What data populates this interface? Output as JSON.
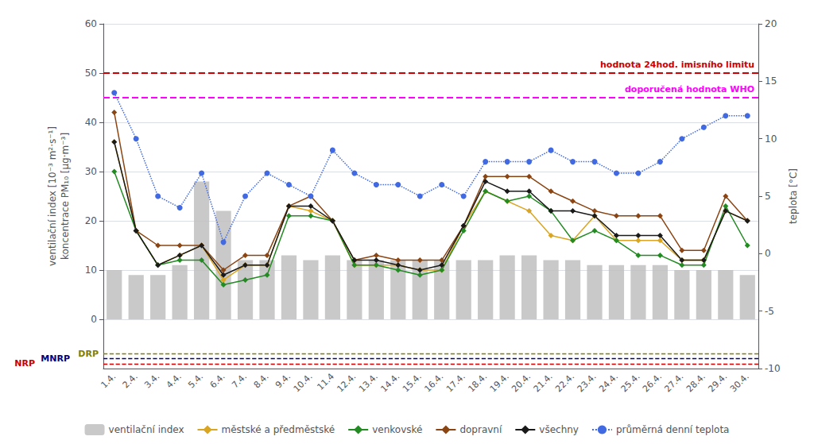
{
  "chart_data": {
    "type": "bar",
    "categories": [
      "1.4.",
      "2.4.",
      "3.4.",
      "4.4.",
      "5.4.",
      "6.4.",
      "7.4.",
      "8.4.",
      "9.4.",
      "10.4.",
      "11.4",
      "12.4.",
      "13.4.",
      "14.4.",
      "15.4.",
      "16.4.",
      "17.4.",
      "18.4.",
      "19.4.",
      "20.4.",
      "21.4.",
      "22.4.",
      "23.4.",
      "24.4.",
      "25.4.",
      "26.4.",
      "27.4.",
      "28.4.",
      "29.4.",
      "30.4."
    ],
    "series": [
      {
        "name": "ventilační index",
        "type": "bar",
        "color": "#C0C0C0",
        "values": [
          10,
          9,
          9,
          11,
          28,
          22,
          12,
          12,
          13,
          12,
          13,
          12,
          12,
          12,
          12,
          12,
          12,
          12,
          13,
          13,
          12,
          12,
          11,
          11,
          11,
          11,
          10,
          10,
          10,
          9
        ]
      },
      {
        "name": "městské a předměstské",
        "type": "line",
        "color": "#DAA520",
        "marker": "diamond",
        "line_style": "solid",
        "values": [
          36,
          18,
          11,
          13,
          15,
          8,
          11,
          11,
          23,
          22,
          20,
          11,
          11,
          11,
          10,
          10,
          19,
          26,
          24,
          22,
          17,
          16,
          21,
          16,
          16,
          16,
          12,
          12,
          22,
          20
        ]
      },
      {
        "name": "venkovské",
        "type": "line",
        "color": "#228B22",
        "marker": "diamond",
        "line_style": "solid",
        "values": [
          30,
          18,
          11,
          12,
          12,
          7,
          8,
          9,
          21,
          21,
          20,
          11,
          11,
          10,
          9,
          10,
          18,
          26,
          24,
          25,
          22,
          16,
          18,
          16,
          13,
          13,
          11,
          11,
          23,
          15
        ]
      },
      {
        "name": "dopravní",
        "type": "line",
        "color": "#8B4513",
        "marker": "diamond",
        "line_style": "solid",
        "values": [
          42,
          18,
          15,
          15,
          15,
          10,
          13,
          13,
          23,
          25,
          20,
          12,
          13,
          12,
          12,
          12,
          19,
          29,
          29,
          29,
          26,
          24,
          22,
          21,
          21,
          21,
          14,
          14,
          25,
          20
        ]
      },
      {
        "name": "všechny",
        "type": "line",
        "color": "#1a1a1a",
        "marker": "diamond",
        "line_style": "solid",
        "values": [
          36,
          18,
          11,
          13,
          15,
          9,
          11,
          11,
          23,
          23,
          20,
          12,
          12,
          11,
          10,
          11,
          19,
          28,
          26,
          26,
          22,
          22,
          21,
          17,
          17,
          17,
          12,
          12,
          22,
          20
        ]
      },
      {
        "name": "průměrná denní teplota",
        "type": "line",
        "color": "#4169E1",
        "marker": "circle",
        "line_style": "dotted",
        "axis": "y2",
        "values": [
          14,
          10,
          5,
          4,
          7,
          1,
          5,
          7,
          6,
          5,
          9,
          7,
          6,
          6,
          5,
          6,
          5,
          8,
          8,
          8,
          9,
          8,
          8,
          7,
          7,
          8,
          10,
          11,
          12,
          12
        ]
      }
    ],
    "ylabel": "ventilační index [10⁻³ m²·s⁻¹]\nkoncentrace PM₁₀ [μg·m⁻³]",
    "y2label": "teplota [°C]",
    "ylim": [
      -10,
      60
    ],
    "yticks": [
      0,
      10,
      20,
      30,
      40,
      50,
      60
    ],
    "y2lim": [
      -10,
      20
    ],
    "y2ticks": [
      -10,
      -5,
      0,
      5,
      10,
      15,
      20
    ],
    "grid": true,
    "legend": "bottom",
    "annotations": [
      {
        "text": "hodnota 24hod. imisního limitu",
        "y": 50,
        "color": "#CC0000",
        "line_style": "dashed"
      },
      {
        "text": "doporučená hodnota WHO",
        "y": 45,
        "color": "#FF00FF",
        "line_style": "dashed"
      },
      {
        "text": "DRP",
        "y": -7,
        "color": "#808000",
        "line_style": "dashed"
      },
      {
        "text": "MNRP",
        "y": -8,
        "color": "#000080",
        "line_style": "dashed"
      },
      {
        "text": "NRP",
        "y": -9,
        "color": "#CC0000",
        "line_style": "dashed"
      }
    ]
  }
}
